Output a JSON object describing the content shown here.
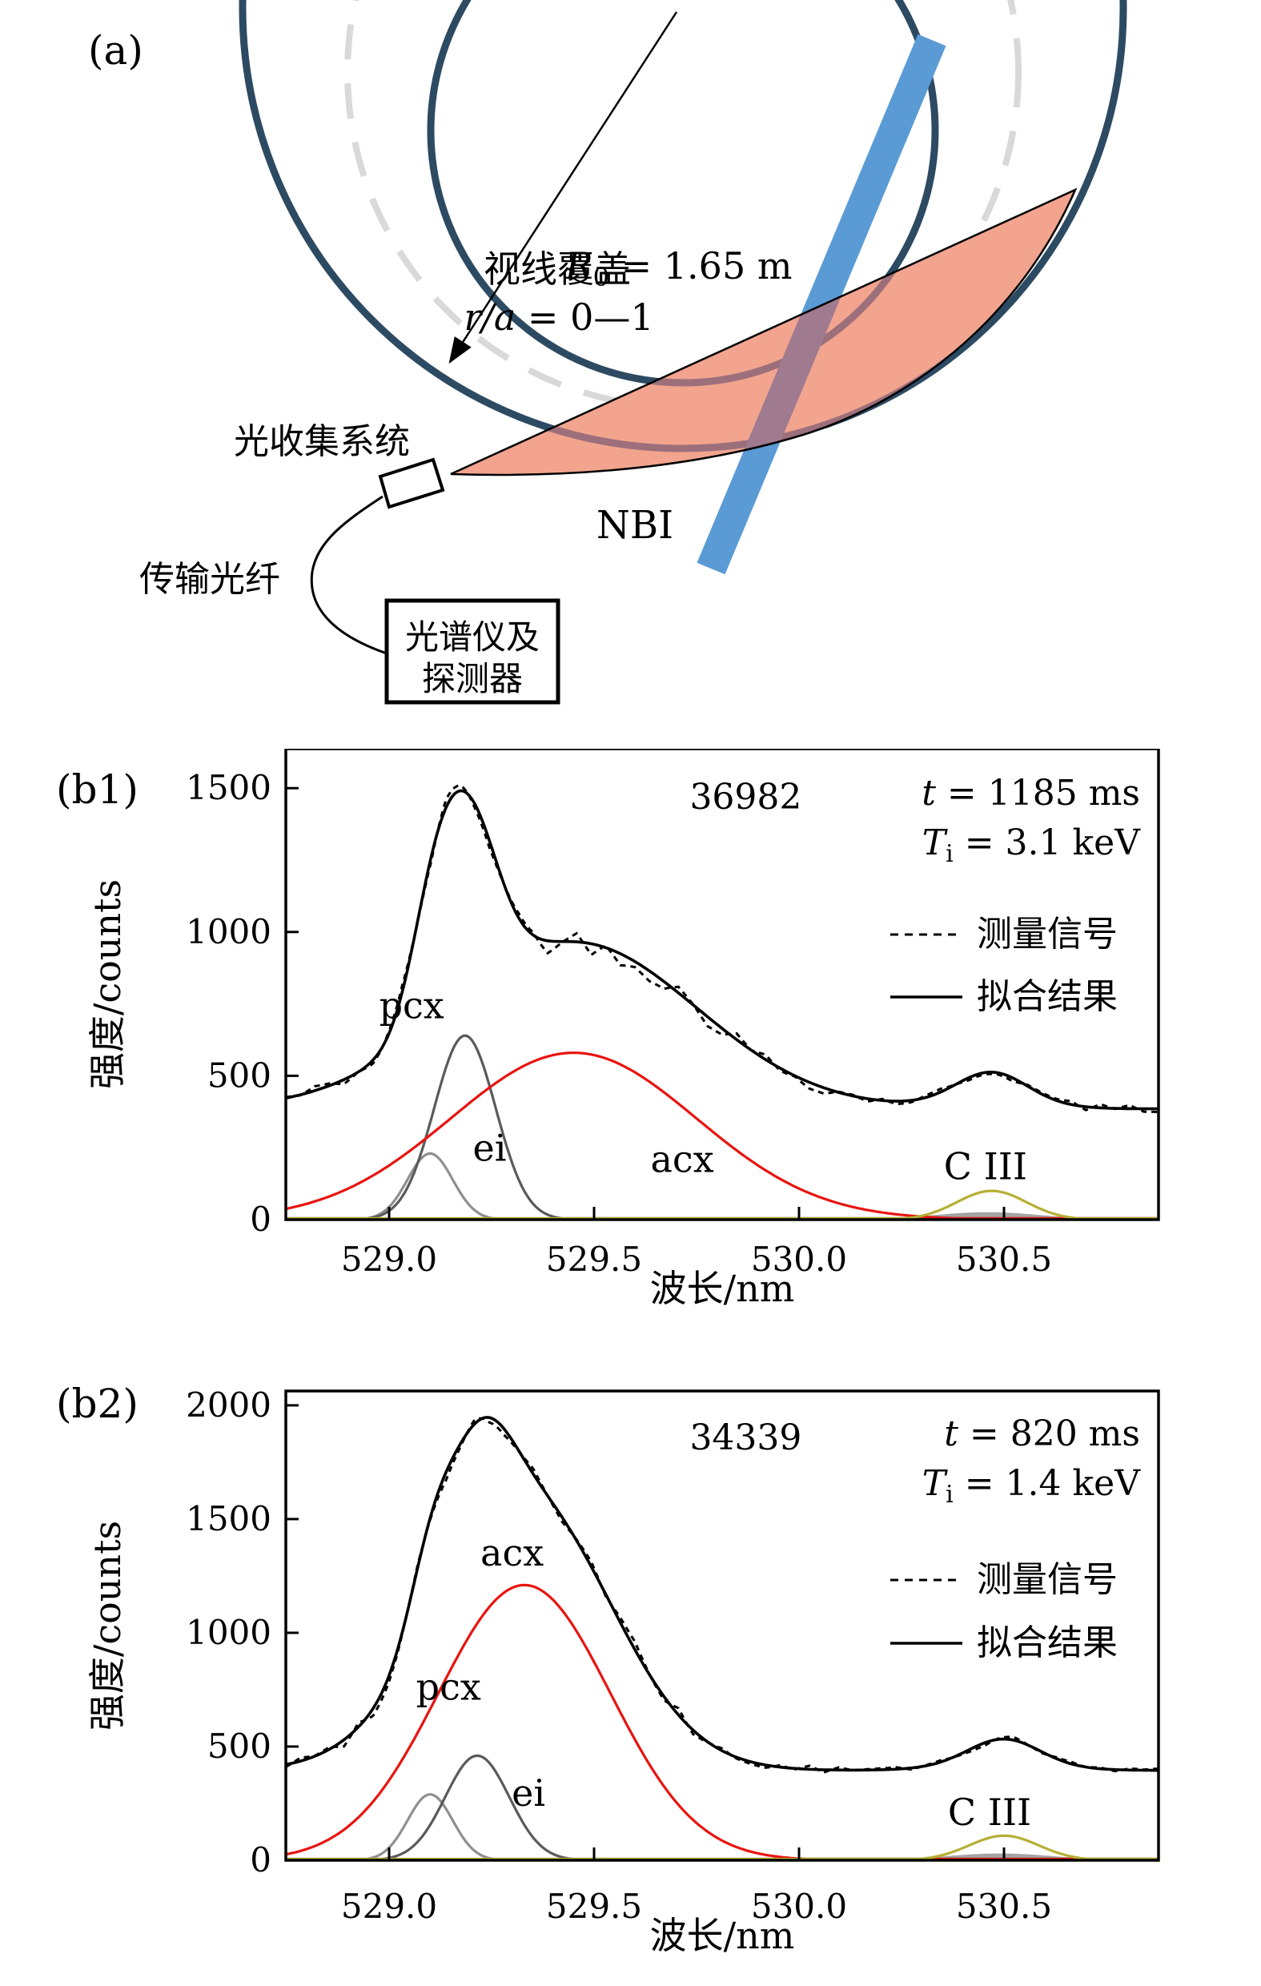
{
  "panel_a": {
    "label": "(a)",
    "r0_label": {
      "var": "R",
      "sub": "0",
      "rest": " = 1.65 m"
    },
    "sightline_line1": "视线覆盖",
    "sightline_line2_var": "r/a",
    "sightline_line2_rest": " = 0—1",
    "collection_label": "光收集系统",
    "fiber_label": "传输光纤",
    "spectrometer_line1": "光谱仪及",
    "spectrometer_line2": "探测器",
    "nbi_label": "NBI",
    "colors": {
      "vessel_circle": "#2d4a63",
      "dashed_flux_circle": "#d9d9d9",
      "sight_fan": "#f2a48e",
      "nbi_beam": "#5b9bd5",
      "beam_fan_overlap": "#a07b90"
    }
  },
  "chart_data": [
    {
      "type": "line",
      "panel_label": "(b1)",
      "shot": "36982",
      "shot_pos": {
        "x": 529.87,
        "y": 1428
      },
      "info": [
        {
          "var": "t",
          "sub": "",
          "rest": " = 1185 ms"
        },
        {
          "var": "T",
          "sub": "i",
          "rest": " = 3.1 keV"
        }
      ],
      "legend": [
        {
          "style": "dashed",
          "label": "测量信号"
        },
        {
          "style": "solid",
          "label": "拟合结果"
        }
      ],
      "xlabel": "波长/nm",
      "ylabel": "强度/counts",
      "xlim": [
        528.748,
        530.877
      ],
      "ylim": [
        0,
        1637
      ],
      "xticks": [
        "529.0",
        "529.5",
        "530.0",
        "530.5"
      ],
      "yticks": [
        "0",
        "500",
        "1000",
        "1500"
      ],
      "background_counts": 385,
      "fit_color": "#000000",
      "measured_color": "#000000",
      "components": [
        {
          "name": "ei",
          "label": "ei",
          "color": "#8f8f8f",
          "center": 529.1,
          "sigma": 0.055,
          "amp": 230,
          "label_x": 529.245,
          "label_y": 205
        },
        {
          "name": "pcx",
          "label": "pcx",
          "color": "#5a5a5a",
          "center": 529.185,
          "sigma": 0.075,
          "amp": 640,
          "label_x": 529.055,
          "label_y": 700
        },
        {
          "name": "acx",
          "label": "acx",
          "color": "#e8140f",
          "center": 529.45,
          "sigma": 0.3,
          "amp": 580,
          "label_x": 529.715,
          "label_y": 165
        },
        {
          "name": "ciii",
          "label": "C III",
          "color": "#b5af35",
          "center": 530.47,
          "sigma": 0.085,
          "amp": 100,
          "label_x": 530.455,
          "label_y": 140
        }
      ],
      "passive_bump": {
        "color": "#9a9a9a",
        "center": 530.46,
        "sigma": 0.13,
        "amp": 26
      }
    },
    {
      "type": "line",
      "panel_label": "(b2)",
      "shot": "34339",
      "shot_pos": {
        "x": 529.87,
        "y": 1806
      },
      "info": [
        {
          "var": "t",
          "sub": "",
          "rest": " = 820 ms"
        },
        {
          "var": "T",
          "sub": "i",
          "rest": " = 1.4 keV"
        }
      ],
      "legend": [
        {
          "style": "dashed",
          "label": "测量信号"
        },
        {
          "style": "solid",
          "label": "拟合结果"
        }
      ],
      "xlabel": "波长/nm",
      "ylabel": "强度/counts",
      "xlim": [
        528.748,
        530.877
      ],
      "ylim": [
        0,
        2063
      ],
      "xticks": [
        "529.0",
        "529.5",
        "530.0",
        "530.5"
      ],
      "yticks": [
        "0",
        "500",
        "1000",
        "1500",
        "2000"
      ],
      "background_counts": 395,
      "fit_color": "#000000",
      "measured_color": "#000000",
      "components": [
        {
          "name": "ei",
          "label": "ei",
          "color": "#8f8f8f",
          "center": 529.1,
          "sigma": 0.055,
          "amp": 290,
          "label_x": 529.34,
          "label_y": 240
        },
        {
          "name": "pcx",
          "label": "pcx",
          "color": "#5a5a5a",
          "center": 529.215,
          "sigma": 0.078,
          "amp": 460,
          "label_x": 529.145,
          "label_y": 705
        },
        {
          "name": "acx",
          "label": "acx",
          "color": "#e8140f",
          "center": 529.33,
          "sigma": 0.21,
          "amp": 1210,
          "label_x": 529.3,
          "label_y": 1295
        },
        {
          "name": "ciii",
          "label": "C III",
          "color": "#b5af35",
          "center": 530.5,
          "sigma": 0.085,
          "amp": 108,
          "label_x": 530.465,
          "label_y": 155
        }
      ],
      "passive_bump": {
        "color": "#9a9a9a",
        "center": 530.49,
        "sigma": 0.13,
        "amp": 30
      }
    }
  ]
}
